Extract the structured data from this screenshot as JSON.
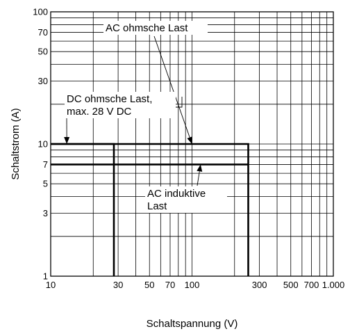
{
  "chart_data": {
    "type": "line",
    "xscale": "log",
    "yscale": "log",
    "xlim": [
      10,
      1000
    ],
    "ylim": [
      1,
      100
    ],
    "grid": true,
    "xlabel": "Schaltspannung (V)",
    "ylabel": "Schaltstrom (A)",
    "xticks": [
      10,
      30,
      50,
      70,
      100,
      300,
      500,
      700,
      1000
    ],
    "xtick_labels": [
      "10",
      "30",
      "50",
      "70",
      "100",
      "300",
      "500",
      "700",
      "1.000"
    ],
    "yticks": [
      1,
      3,
      5,
      7,
      10,
      30,
      50,
      70,
      100
    ],
    "ytick_labels": [
      "1",
      "3",
      "5",
      "7",
      "10",
      "30",
      "50",
      "70",
      "100"
    ],
    "series": [
      {
        "name": "AC ohmsche Last",
        "x": [
          10,
          250,
          250
        ],
        "y": [
          10,
          10,
          1
        ]
      },
      {
        "name": "DC ohmsche Last, max. 28 V DC",
        "x": [
          10,
          28,
          28
        ],
        "y": [
          10,
          10,
          1
        ]
      },
      {
        "name": "AC induktive Last",
        "x": [
          10,
          250
        ],
        "y": [
          7,
          7
        ]
      }
    ],
    "annotations": [
      {
        "lines": [
          "AC ohmsche Last"
        ],
        "arrow_to": [
          100,
          10
        ]
      },
      {
        "lines": [
          "DC ohmsche Last,",
          "max. 28 V DC"
        ],
        "arrow_to": [
          13,
          10
        ]
      },
      {
        "lines": [
          "AC induktive",
          "Last"
        ],
        "arrow_to": [
          115,
          7
        ]
      }
    ]
  }
}
